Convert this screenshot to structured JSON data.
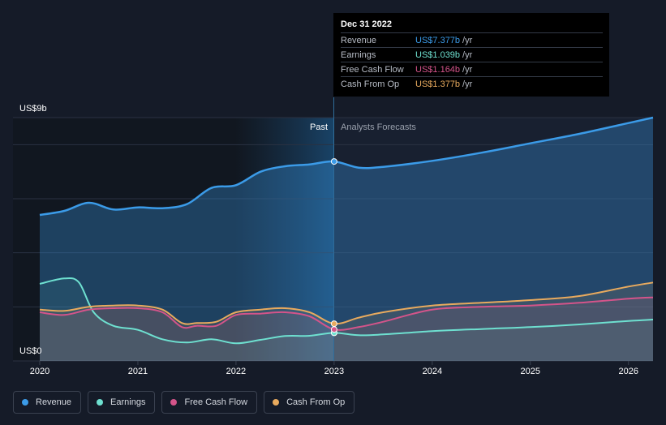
{
  "tooltip": {
    "date": "Dec 31 2022",
    "rows": [
      {
        "label": "Revenue",
        "value": "US$7.377b",
        "unit": "/yr",
        "color": "#3b9be8"
      },
      {
        "label": "Earnings",
        "value": "US$1.039b",
        "unit": "/yr",
        "color": "#6ee0d0"
      },
      {
        "label": "Free Cash Flow",
        "value": "US$1.164b",
        "unit": "/yr",
        "color": "#d4548a"
      },
      {
        "label": "Cash From Op",
        "value": "US$1.377b",
        "unit": "/yr",
        "color": "#e8aa5e"
      }
    ]
  },
  "chart_data": {
    "type": "line",
    "y_top_label": "US$9b",
    "y_bottom_label": "US$0",
    "ylim": [
      0,
      9
    ],
    "xlim": [
      2020.0,
      2026.25
    ],
    "x_ticks": [
      2020,
      2021,
      2022,
      2023,
      2024,
      2025,
      2026
    ],
    "divider_x": 2023.0,
    "past_label": "Past",
    "forecast_label": "Analysts Forecasts",
    "gridlines": [
      0,
      2,
      4,
      6,
      8,
      9
    ],
    "series": [
      {
        "name": "Revenue",
        "color": "#3b9be8",
        "points": [
          [
            2020.0,
            5.4
          ],
          [
            2020.25,
            5.55
          ],
          [
            2020.5,
            5.85
          ],
          [
            2020.75,
            5.6
          ],
          [
            2021.0,
            5.68
          ],
          [
            2021.25,
            5.65
          ],
          [
            2021.5,
            5.8
          ],
          [
            2021.75,
            6.4
          ],
          [
            2022.0,
            6.5
          ],
          [
            2022.25,
            7.0
          ],
          [
            2022.5,
            7.2
          ],
          [
            2022.75,
            7.27
          ],
          [
            2023.0,
            7.377
          ],
          [
            2023.25,
            7.15
          ],
          [
            2023.5,
            7.18
          ],
          [
            2024.0,
            7.4
          ],
          [
            2024.5,
            7.7
          ],
          [
            2025.0,
            8.05
          ],
          [
            2025.5,
            8.4
          ],
          [
            2026.0,
            8.8
          ],
          [
            2026.25,
            9.0
          ]
        ]
      },
      {
        "name": "Earnings",
        "color": "#6ee0d0",
        "points": [
          [
            2020.0,
            2.85
          ],
          [
            2020.25,
            3.05
          ],
          [
            2020.4,
            2.9
          ],
          [
            2020.55,
            1.8
          ],
          [
            2020.75,
            1.3
          ],
          [
            2021.0,
            1.15
          ],
          [
            2021.25,
            0.8
          ],
          [
            2021.5,
            0.68
          ],
          [
            2021.75,
            0.8
          ],
          [
            2022.0,
            0.65
          ],
          [
            2022.25,
            0.78
          ],
          [
            2022.5,
            0.92
          ],
          [
            2022.75,
            0.93
          ],
          [
            2023.0,
            1.039
          ],
          [
            2023.25,
            0.95
          ],
          [
            2023.5,
            0.98
          ],
          [
            2024.0,
            1.1
          ],
          [
            2024.5,
            1.18
          ],
          [
            2025.0,
            1.25
          ],
          [
            2025.5,
            1.35
          ],
          [
            2026.0,
            1.48
          ],
          [
            2026.25,
            1.53
          ]
        ]
      },
      {
        "name": "Free Cash Flow",
        "color": "#d4548a",
        "points": [
          [
            2020.0,
            1.8
          ],
          [
            2020.25,
            1.7
          ],
          [
            2020.5,
            1.9
          ],
          [
            2020.75,
            1.95
          ],
          [
            2021.0,
            1.95
          ],
          [
            2021.25,
            1.8
          ],
          [
            2021.45,
            1.25
          ],
          [
            2021.6,
            1.3
          ],
          [
            2021.8,
            1.3
          ],
          [
            2022.0,
            1.7
          ],
          [
            2022.25,
            1.75
          ],
          [
            2022.5,
            1.8
          ],
          [
            2022.75,
            1.65
          ],
          [
            2023.0,
            1.164
          ],
          [
            2023.25,
            1.25
          ],
          [
            2023.5,
            1.45
          ],
          [
            2024.0,
            1.9
          ],
          [
            2024.5,
            2.0
          ],
          [
            2025.0,
            2.05
          ],
          [
            2025.5,
            2.15
          ],
          [
            2026.0,
            2.3
          ],
          [
            2026.25,
            2.35
          ]
        ]
      },
      {
        "name": "Cash From Op",
        "color": "#e8aa5e",
        "points": [
          [
            2020.0,
            1.9
          ],
          [
            2020.25,
            1.85
          ],
          [
            2020.5,
            2.0
          ],
          [
            2020.75,
            2.05
          ],
          [
            2021.0,
            2.05
          ],
          [
            2021.25,
            1.9
          ],
          [
            2021.45,
            1.4
          ],
          [
            2021.6,
            1.4
          ],
          [
            2021.8,
            1.45
          ],
          [
            2022.0,
            1.8
          ],
          [
            2022.25,
            1.9
          ],
          [
            2022.5,
            1.95
          ],
          [
            2022.75,
            1.8
          ],
          [
            2023.0,
            1.377
          ],
          [
            2023.25,
            1.6
          ],
          [
            2023.5,
            1.8
          ],
          [
            2024.0,
            2.05
          ],
          [
            2024.5,
            2.15
          ],
          [
            2025.0,
            2.25
          ],
          [
            2025.5,
            2.4
          ],
          [
            2026.0,
            2.75
          ],
          [
            2026.25,
            2.9
          ]
        ]
      }
    ]
  },
  "legend": [
    {
      "label": "Revenue",
      "color": "#3b9be8"
    },
    {
      "label": "Earnings",
      "color": "#6ee0d0"
    },
    {
      "label": "Free Cash Flow",
      "color": "#d4548a"
    },
    {
      "label": "Cash From Op",
      "color": "#e8aa5e"
    }
  ]
}
